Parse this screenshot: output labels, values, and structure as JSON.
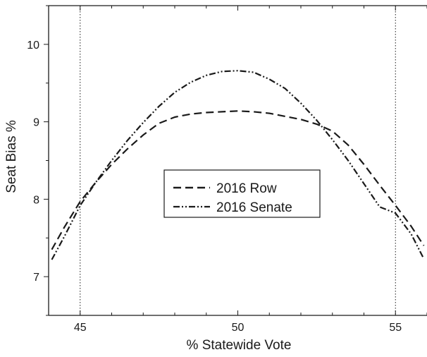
{
  "chart_data": {
    "type": "line",
    "xlabel": "% Statewide Vote",
    "ylabel": "Seat Bias %",
    "xlim": [
      44,
      56
    ],
    "ylim": [
      6.5,
      10.5
    ],
    "x_ticks": [
      45,
      50,
      55
    ],
    "x_tick_labels": [
      "45",
      "50",
      "55"
    ],
    "y_ticks": [
      7,
      8,
      9,
      10
    ],
    "y_tick_labels": [
      "7",
      "8",
      "9",
      "10"
    ],
    "reference_lines_x": [
      45,
      55
    ],
    "legend_position": "center",
    "grid": false,
    "series": [
      {
        "name": "2016 Row",
        "style": "dashed",
        "color": "#1a1a1a",
        "x": [
          44.1,
          44.5,
          45,
          45.5,
          46,
          46.5,
          47,
          47.5,
          48,
          48.5,
          49,
          49.5,
          50,
          50.5,
          51,
          51.5,
          52,
          52.5,
          53,
          53.5,
          54,
          54.5,
          55,
          55.5,
          55.9
        ],
        "y": [
          7.35,
          7.64,
          7.97,
          8.22,
          8.45,
          8.65,
          8.83,
          8.98,
          9.06,
          9.1,
          9.12,
          9.13,
          9.14,
          9.13,
          9.11,
          9.07,
          9.03,
          8.97,
          8.88,
          8.7,
          8.45,
          8.18,
          7.92,
          7.65,
          7.4
        ]
      },
      {
        "name": "2016 Senate",
        "style": "dash-dot-dot",
        "color": "#1a1a1a",
        "x": [
          44.1,
          44.5,
          45,
          45.5,
          46,
          46.5,
          47,
          47.5,
          48,
          48.5,
          49,
          49.5,
          50,
          50.5,
          51,
          51.5,
          52,
          52.5,
          53,
          53.5,
          54,
          54.5,
          55,
          55.5,
          55.9
        ],
        "y": [
          7.22,
          7.52,
          7.92,
          8.22,
          8.5,
          8.76,
          8.99,
          9.2,
          9.38,
          9.51,
          9.6,
          9.65,
          9.66,
          9.64,
          9.55,
          9.43,
          9.24,
          9.02,
          8.77,
          8.5,
          8.2,
          7.9,
          7.82,
          7.55,
          7.23
        ]
      }
    ]
  }
}
